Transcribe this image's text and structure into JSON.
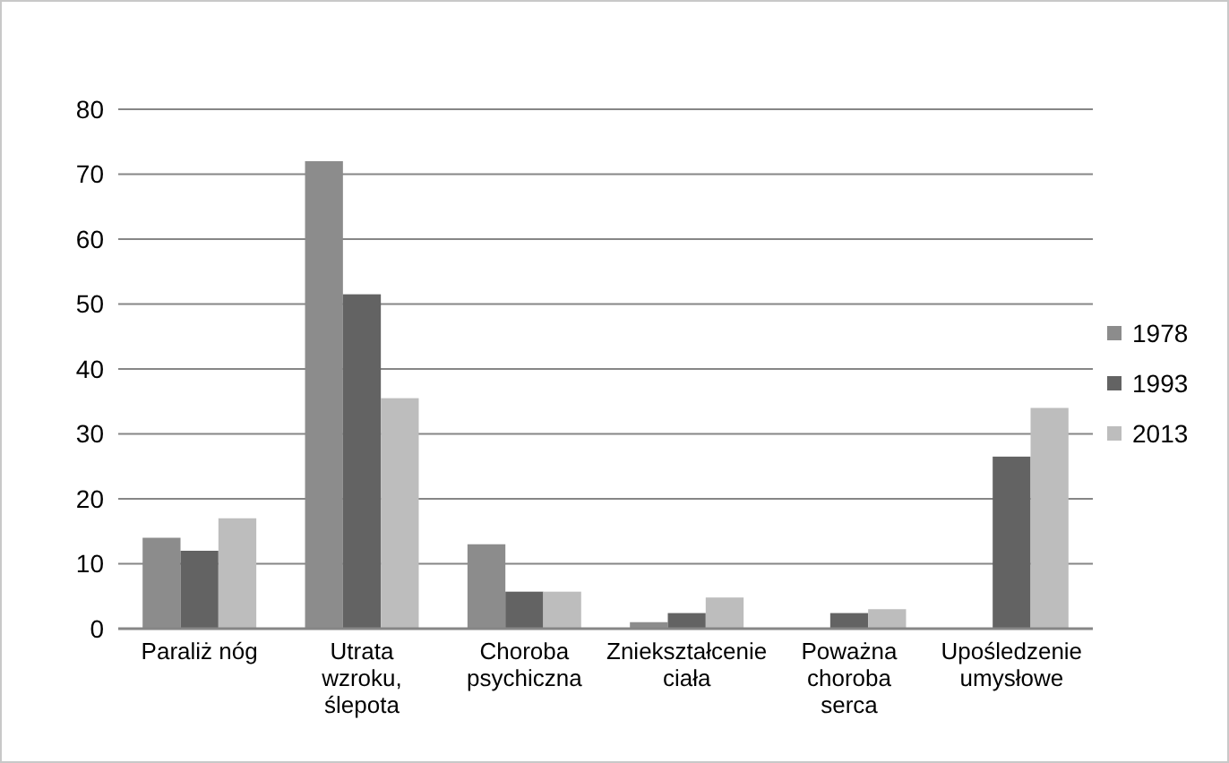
{
  "chart_data": {
    "type": "bar",
    "categories": [
      "Paraliż nóg",
      "Utrata wzroku, ślepota",
      "Choroba psychiczna",
      "Zniekształcenie ciała",
      "Poważna choroba serca",
      "Upośledzenie umysłowe"
    ],
    "series": [
      {
        "name": "1978",
        "color": "#8c8c8c",
        "values": [
          14,
          72,
          13,
          1,
          null,
          null
        ]
      },
      {
        "name": "1993",
        "color": "#636363",
        "values": [
          12,
          51.5,
          5.7,
          2.4,
          2.4,
          26.5
        ]
      },
      {
        "name": "2013",
        "color": "#bdbdbd",
        "values": [
          17,
          35.5,
          5.7,
          4.8,
          3,
          34
        ]
      }
    ],
    "ylim": [
      0,
      80
    ],
    "yticks": [
      0,
      10,
      20,
      30,
      40,
      50,
      60,
      70,
      80
    ],
    "grid": "y",
    "legend": "right"
  }
}
